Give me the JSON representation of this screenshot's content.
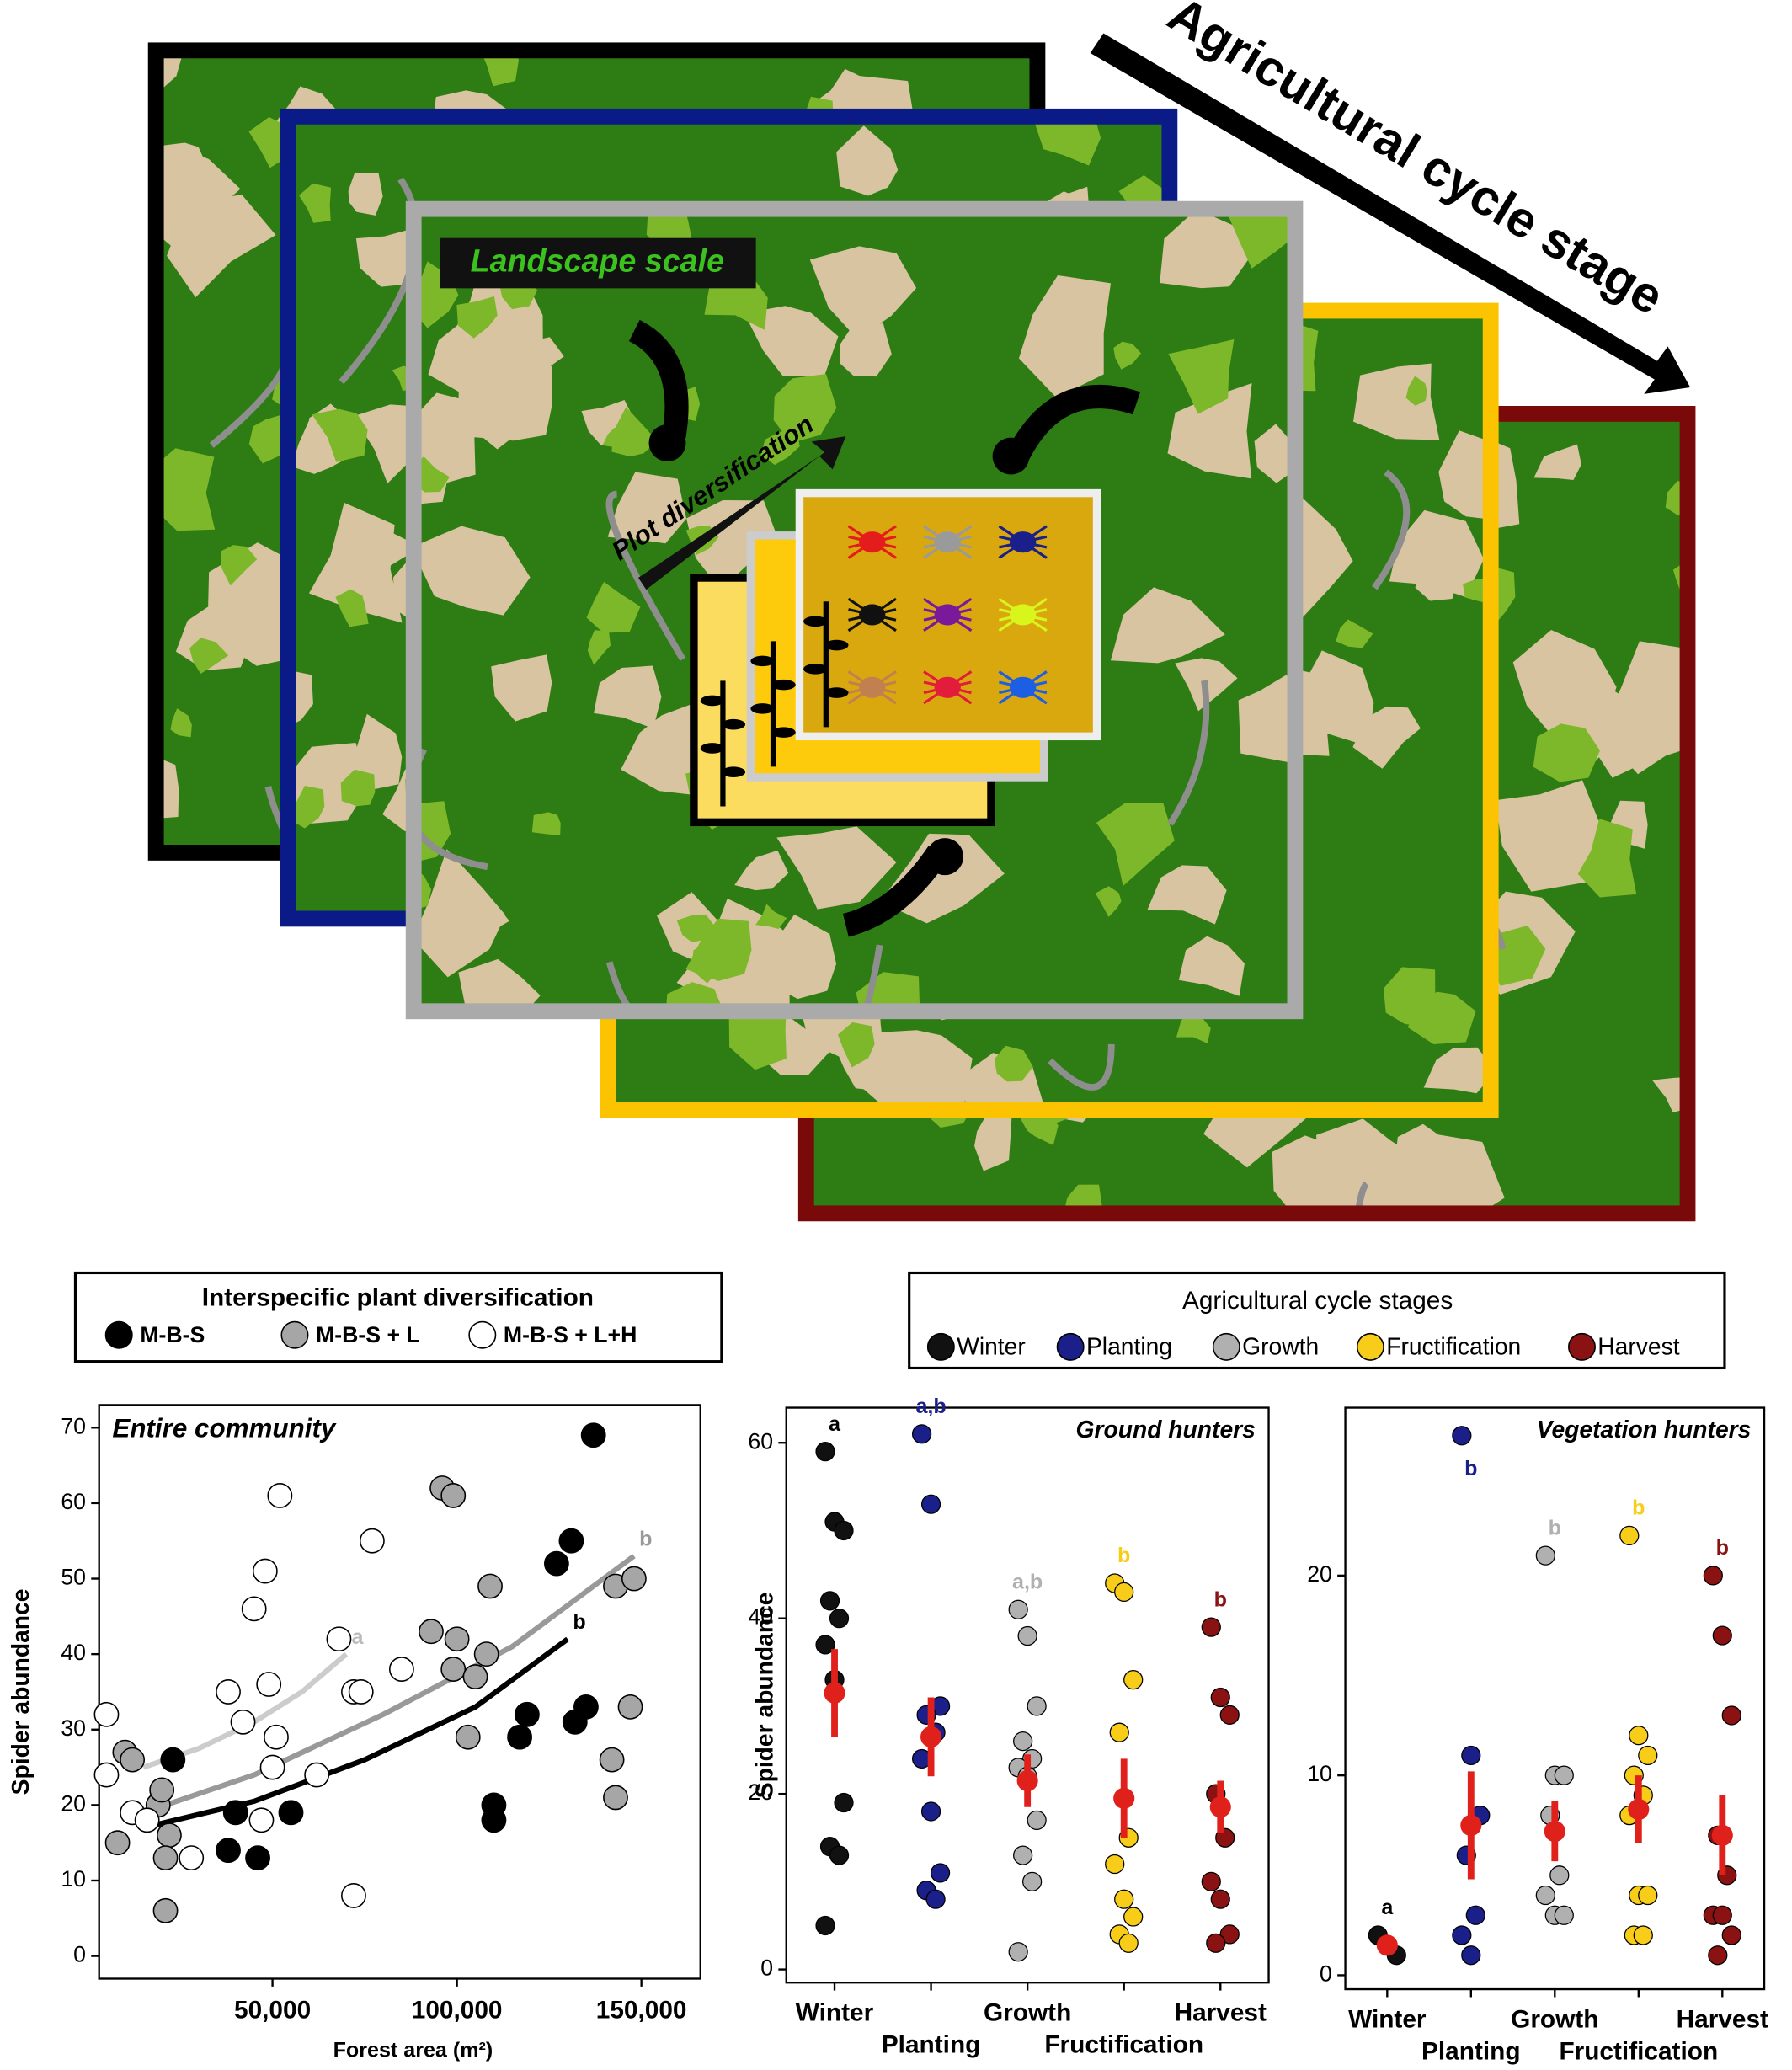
{
  "illustration": {
    "arrow_label": "Agricultural cycle stage",
    "landscape_label": "Landscape scale",
    "plot_label": "Plot diversification"
  },
  "chart_data": [
    {
      "type": "scatter",
      "title": "Entire community",
      "x_label": "Forest area (m²)",
      "y_label": "Spider abundance",
      "legend_title": "Interspecific plant diversification",
      "xlim": [
        3000,
        166000
      ],
      "ylim": [
        -3,
        73
      ],
      "xticks": [
        {
          "value": 50000,
          "label": "50,000"
        },
        {
          "value": 100000,
          "label": "100,000"
        },
        {
          "value": 150000,
          "label": "150,000"
        }
      ],
      "yticks": [
        0,
        10,
        20,
        30,
        40,
        50,
        60,
        70
      ],
      "series": [
        {
          "name": "M-B-S",
          "color": "#000000",
          "x": [
            23000,
            40000,
            38000,
            46000,
            55000,
            110000,
            110000,
            117000,
            119000,
            127000,
            131000,
            132000,
            135000,
            137000
          ],
          "y": [
            26,
            19,
            14,
            13,
            19,
            20,
            18,
            29,
            32,
            52,
            55,
            31,
            33,
            69
          ]
        },
        {
          "name": "M-B-S + L",
          "color": "#a6a6a6",
          "x": [
            8000,
            10000,
            12000,
            19000,
            20000,
            21000,
            22000,
            21000,
            93000,
            96000,
            99000,
            99000,
            100000,
            103000,
            105000,
            108000,
            109000,
            142000,
            143000,
            143000,
            147000,
            148000
          ],
          "y": [
            15,
            27,
            26,
            20,
            22,
            6,
            16,
            13,
            43,
            62,
            61,
            38,
            42,
            29,
            37,
            40,
            49,
            26,
            21,
            49,
            33,
            50
          ]
        },
        {
          "name": "M-B-S + L+H",
          "color": "#ffffff",
          "x": [
            5000,
            5000,
            12000,
            16000,
            28000,
            38000,
            42000,
            45000,
            47000,
            48000,
            49000,
            50000,
            51000,
            52000,
            62000,
            68000,
            72000,
            72000,
            74000,
            77000,
            85000
          ],
          "y": [
            32,
            24,
            19,
            18,
            13,
            35,
            31,
            46,
            18,
            51,
            36,
            25,
            29,
            61,
            24,
            42,
            8,
            35,
            35,
            55,
            38
          ]
        }
      ],
      "fits": [
        {
          "label": "a",
          "color": "#cccccc",
          "x": [
            15000,
            30000,
            45000,
            58000,
            70000
          ],
          "y": [
            25,
            27.5,
            31,
            35,
            40
          ]
        },
        {
          "label": "b",
          "color": "#999999",
          "x": [
            15000,
            45000,
            80000,
            115000,
            148000
          ],
          "y": [
            19,
            24,
            32,
            41,
            53
          ]
        },
        {
          "label": "b",
          "color": "#000000",
          "x": [
            15000,
            45000,
            75000,
            105000,
            130000
          ],
          "y": [
            17,
            20.5,
            26,
            33,
            42
          ]
        }
      ]
    },
    {
      "type": "strip",
      "title": "Ground hunters",
      "y_label": "Spider abundance",
      "legend_title": "Agricultural cycle stages",
      "ylim": [
        -1.5,
        64
      ],
      "yticks": [
        0,
        20,
        40,
        60
      ],
      "categories": [
        "Winter",
        "Planting",
        "Growth",
        "Fructification",
        "Harvest"
      ],
      "colors": [
        "#111111",
        "#1b1f8a",
        "#b0b0b0",
        "#f7cd1a",
        "#8b1212"
      ],
      "values": [
        [
          59,
          51,
          50,
          42,
          40,
          37,
          33,
          19,
          14,
          13,
          5
        ],
        [
          61,
          53,
          30,
          29,
          27,
          24,
          18,
          11,
          9,
          8
        ],
        [
          41,
          38,
          30,
          26,
          24,
          23,
          22,
          17,
          13,
          10,
          2
        ],
        [
          44,
          43,
          33,
          27,
          15,
          12,
          8,
          6,
          4,
          3
        ],
        [
          39,
          31,
          29,
          20,
          15,
          10,
          8,
          4,
          3
        ]
      ],
      "means": [
        31.5,
        26.5,
        21.5,
        19.5,
        18.5
      ],
      "errors": [
        5,
        4.5,
        3,
        4.5,
        3
      ],
      "letters": [
        "a",
        "a,b",
        "a,b",
        "b",
        "b"
      ],
      "mean_color": "#e0201b"
    },
    {
      "type": "strip",
      "title": "Vegetation hunters",
      "ylim": [
        -0.7,
        28.4
      ],
      "yticks": [
        0,
        10,
        20
      ],
      "categories": [
        "Winter",
        "Planting",
        "Growth",
        "Fructification",
        "Harvest"
      ],
      "colors": [
        "#111111",
        "#1b1f8a",
        "#b0b0b0",
        "#f7cd1a",
        "#8b1212"
      ],
      "values": [
        [
          2,
          1.5,
          1
        ],
        [
          27,
          11,
          8,
          6,
          3,
          2,
          1
        ],
        [
          21,
          10,
          10,
          8,
          5,
          4,
          3,
          3
        ],
        [
          22,
          12,
          11,
          10,
          9,
          8,
          4,
          4,
          2,
          2
        ],
        [
          20,
          17,
          13,
          7,
          5,
          3,
          3,
          2,
          1
        ]
      ],
      "means": [
        1.5,
        7.5,
        7.2,
        8.3,
        7
      ],
      "errors": [
        0.3,
        2.7,
        1.5,
        1.7,
        2
      ],
      "letters": [
        "a",
        "b",
        "b",
        "b",
        "b"
      ],
      "mean_color": "#e0201b"
    }
  ]
}
